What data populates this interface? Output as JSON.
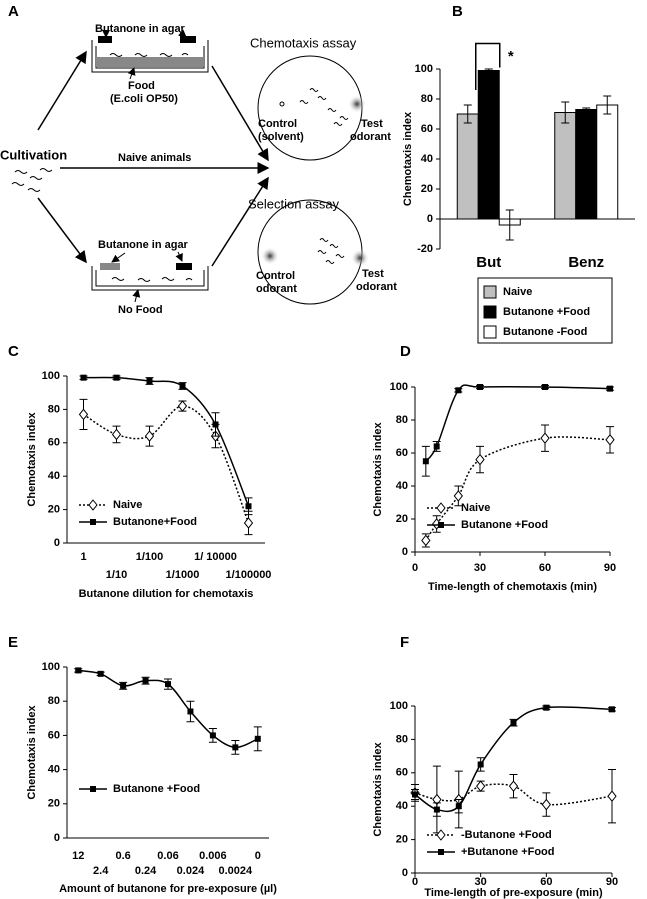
{
  "diagram": {
    "label": "A",
    "top_dish": {
      "agar": "Butanone in agar",
      "food": "Food",
      "food_source": "(E.coli OP50)"
    },
    "chemotaxis_assay": {
      "title": "Chemotaxis assay",
      "control": "Control",
      "control_note": "(solvent)",
      "test": "Test",
      "test_note": "odorant"
    },
    "cultivation": "Cultivation",
    "naive": "Naive animals",
    "selection_assay": {
      "title": "Selection assay",
      "control": "Control",
      "control_note": "odorant",
      "test": "Test",
      "test_note": "odorant"
    },
    "bottom_dish": {
      "agar": "Butanone in agar",
      "food": "No Food"
    }
  },
  "chart_data": [
    {
      "type": "bar",
      "label": "B",
      "ylabel": "Chemotaxis index",
      "categories": [
        "But",
        "Benz"
      ],
      "series": [
        {
          "name": "Naive",
          "color": "#c0c0c0",
          "values": [
            70,
            71
          ],
          "errors": [
            6,
            7
          ]
        },
        {
          "name": "Butanone +Food",
          "color": "#000000",
          "values": [
            99,
            73
          ],
          "errors": [
            1,
            1
          ]
        },
        {
          "name": "Butanone -Food",
          "color": "#ffffff",
          "values": [
            -4,
            76
          ],
          "errors": [
            10,
            6
          ]
        }
      ],
      "ylim": [
        -20,
        100
      ],
      "yticks": [
        -20,
        0,
        20,
        40,
        60,
        80,
        100
      ],
      "annotations": [
        "*"
      ],
      "legend": "below"
    },
    {
      "type": "line",
      "label": "C",
      "xlabel": "Butanone dilution for chemotaxis",
      "ylabel": "Chemotaxis index",
      "categories": [
        "1",
        "1/10",
        "1/100",
        "1/1000",
        "1/ 10000",
        "1/100000"
      ],
      "series": [
        {
          "name": "Naive",
          "color": "#000000",
          "marker": "diamond-open",
          "dash": "dotted",
          "values": [
            77,
            65,
            64,
            82,
            64,
            12
          ],
          "errors": [
            9,
            5,
            6,
            3,
            7,
            7
          ]
        },
        {
          "name": "Butanone+Food",
          "color": "#000000",
          "marker": "square",
          "dash": "solid",
          "values": [
            99,
            99,
            97,
            94,
            71,
            22
          ],
          "errors": [
            1,
            1,
            2,
            2,
            7,
            5
          ]
        }
      ],
      "ylim": [
        0,
        100
      ],
      "yticks": [
        0,
        20,
        40,
        60,
        80,
        100
      ],
      "legend": "lower left"
    },
    {
      "type": "line",
      "label": "D",
      "xlabel": "Time-length of chemotaxis (min)",
      "ylabel": "Chemotaxis index",
      "x": [
        5,
        10,
        20,
        30,
        60,
        90
      ],
      "series": [
        {
          "name": "Naive",
          "color": "#000000",
          "marker": "diamond-open",
          "dash": "dotted",
          "values": [
            7,
            17,
            34,
            56,
            69,
            68
          ],
          "errors": [
            4,
            5,
            6,
            8,
            8,
            8
          ]
        },
        {
          "name": "Butanone +Food",
          "color": "#000000",
          "marker": "square",
          "dash": "solid",
          "values": [
            55,
            64,
            98,
            100,
            100,
            99
          ],
          "errors": [
            9,
            3,
            1,
            1,
            1,
            1
          ]
        }
      ],
      "xlim": [
        0,
        90
      ],
      "xticks": [
        0,
        30,
        60,
        90
      ],
      "ylim": [
        0,
        100
      ],
      "yticks": [
        0,
        20,
        40,
        60,
        80,
        100
      ],
      "legend": "lower left"
    },
    {
      "type": "line",
      "label": "E",
      "xlabel": "Amount of butanone for pre-exposure (µl)",
      "ylabel": "Chemotaxis index",
      "categories": [
        "12",
        "2.4",
        "0.6",
        "0.24",
        "0.06",
        "0.024",
        "0.006",
        "0.0024",
        "0"
      ],
      "series": [
        {
          "name": "Butanone +Food",
          "color": "#000000",
          "marker": "square",
          "dash": "solid",
          "values": [
            98,
            96,
            89,
            92,
            90,
            74,
            60,
            53,
            58
          ],
          "errors": [
            1,
            1,
            2,
            2,
            3,
            6,
            4,
            4,
            7
          ]
        }
      ],
      "ylim": [
        0,
        100
      ],
      "yticks": [
        0,
        20,
        40,
        60,
        80,
        100
      ],
      "legend": "lower left"
    },
    {
      "type": "line",
      "label": "F",
      "xlabel": "Time-length of pre-exposure (min)",
      "ylabel": "Chemotaxis index",
      "x": [
        0,
        10,
        20,
        30,
        45,
        60,
        90
      ],
      "series": [
        {
          "name": "-Butanone +Food",
          "color": "#000000",
          "marker": "diamond-open",
          "dash": "dotted",
          "values": [
            48,
            44,
            44,
            52,
            52,
            41,
            46
          ],
          "errors": [
            5,
            20,
            17,
            3,
            7,
            7,
            16
          ]
        },
        {
          "name": "+Butanone +Food",
          "color": "#000000",
          "marker": "square",
          "dash": "solid",
          "values": [
            47,
            38,
            40,
            65,
            90,
            99,
            98
          ],
          "errors": [
            3,
            4,
            4,
            4,
            2,
            1,
            1
          ]
        }
      ],
      "xlim": [
        0,
        90
      ],
      "xticks": [
        0,
        30,
        60,
        90
      ],
      "ylim": [
        0,
        100
      ],
      "yticks": [
        0,
        20,
        40,
        60,
        80,
        100
      ],
      "legend": "lower left"
    }
  ]
}
